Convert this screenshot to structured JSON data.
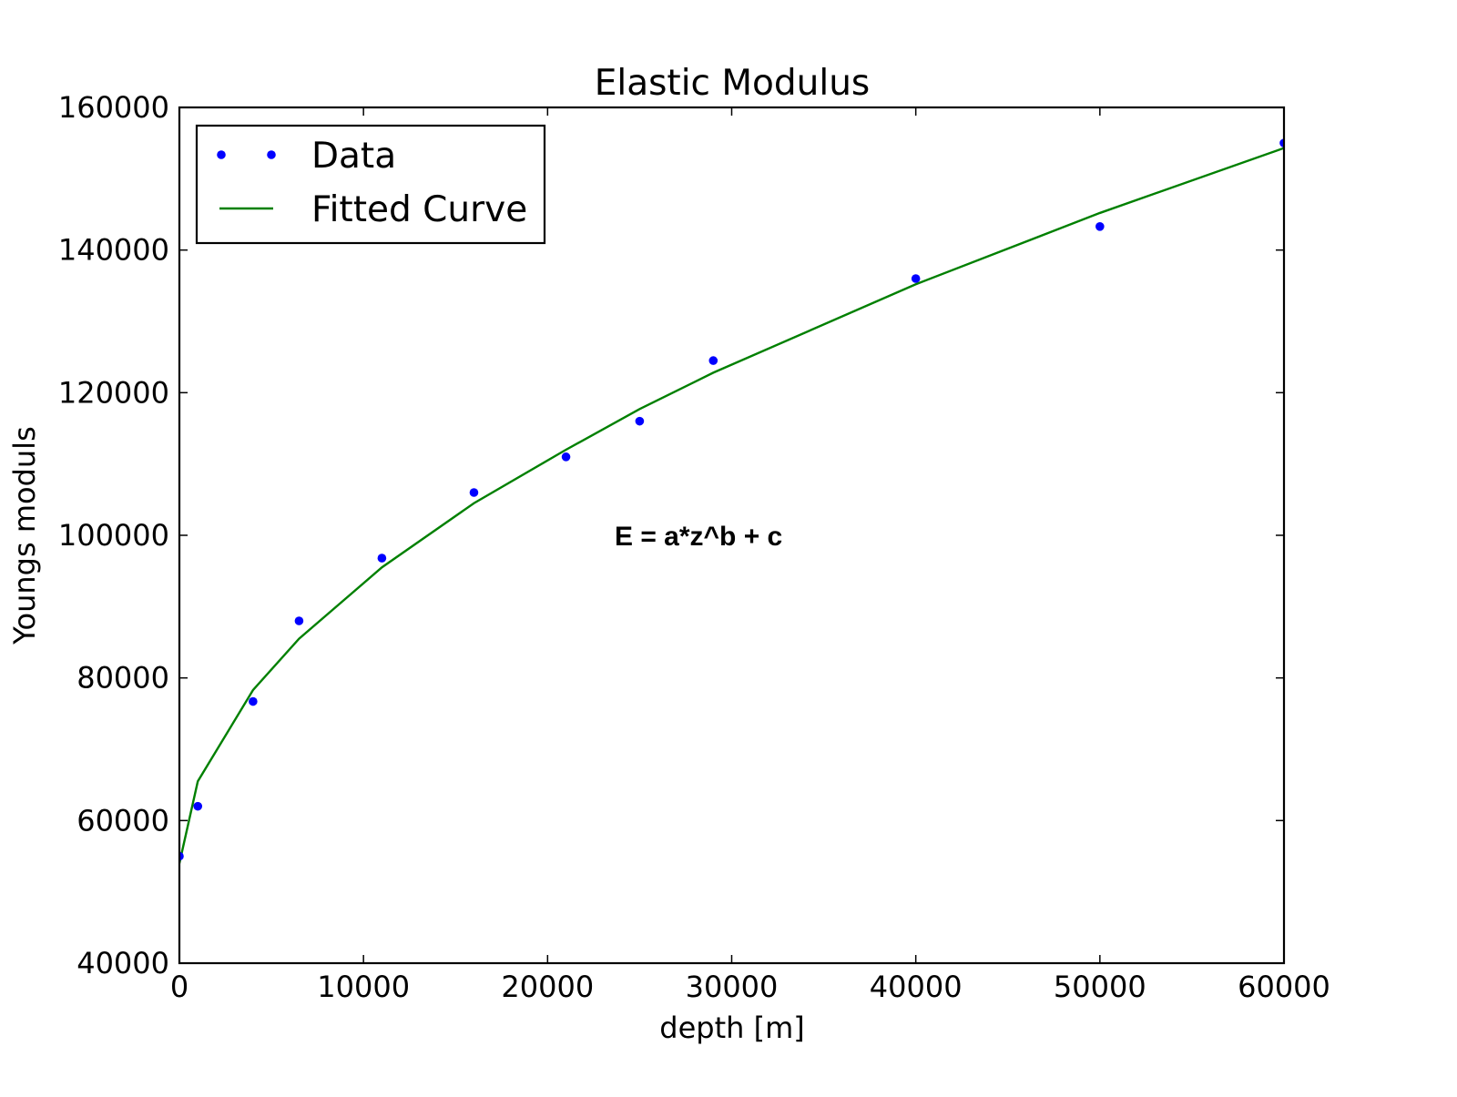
{
  "chart_data": {
    "type": "scatter",
    "title": "Elastic Modulus",
    "xlabel": "depth [m]",
    "ylabel": "Youngs moduls",
    "xlim": [
      0,
      60000
    ],
    "ylim": [
      40000,
      160000
    ],
    "xticks": [
      0,
      10000,
      20000,
      30000,
      40000,
      50000,
      60000
    ],
    "yticks": [
      40000,
      60000,
      80000,
      100000,
      120000,
      140000,
      160000
    ],
    "grid": false,
    "legend_position": "top-left",
    "annotation": "E = a*z^b + c",
    "colors": {
      "data": "#0000ff",
      "fit": "#008000"
    },
    "series": [
      {
        "name": "Data",
        "style": "markers",
        "x": [
          0,
          1000,
          4000,
          6500,
          11000,
          16000,
          21000,
          25000,
          29000,
          40000,
          50000,
          60000
        ],
        "y": [
          55000,
          62000,
          76700,
          88000,
          96800,
          106000,
          111000,
          116000,
          124500,
          136000,
          143300,
          155000
        ]
      },
      {
        "name": "Fitted Curve",
        "style": "line",
        "x": [
          0,
          1000,
          4000,
          6500,
          11000,
          16000,
          21000,
          25000,
          29000,
          40000,
          50000,
          60000
        ],
        "y": [
          54000,
          65500,
          78300,
          85500,
          95500,
          104500,
          112000,
          117700,
          122800,
          135200,
          145200,
          154300
        ]
      }
    ]
  }
}
